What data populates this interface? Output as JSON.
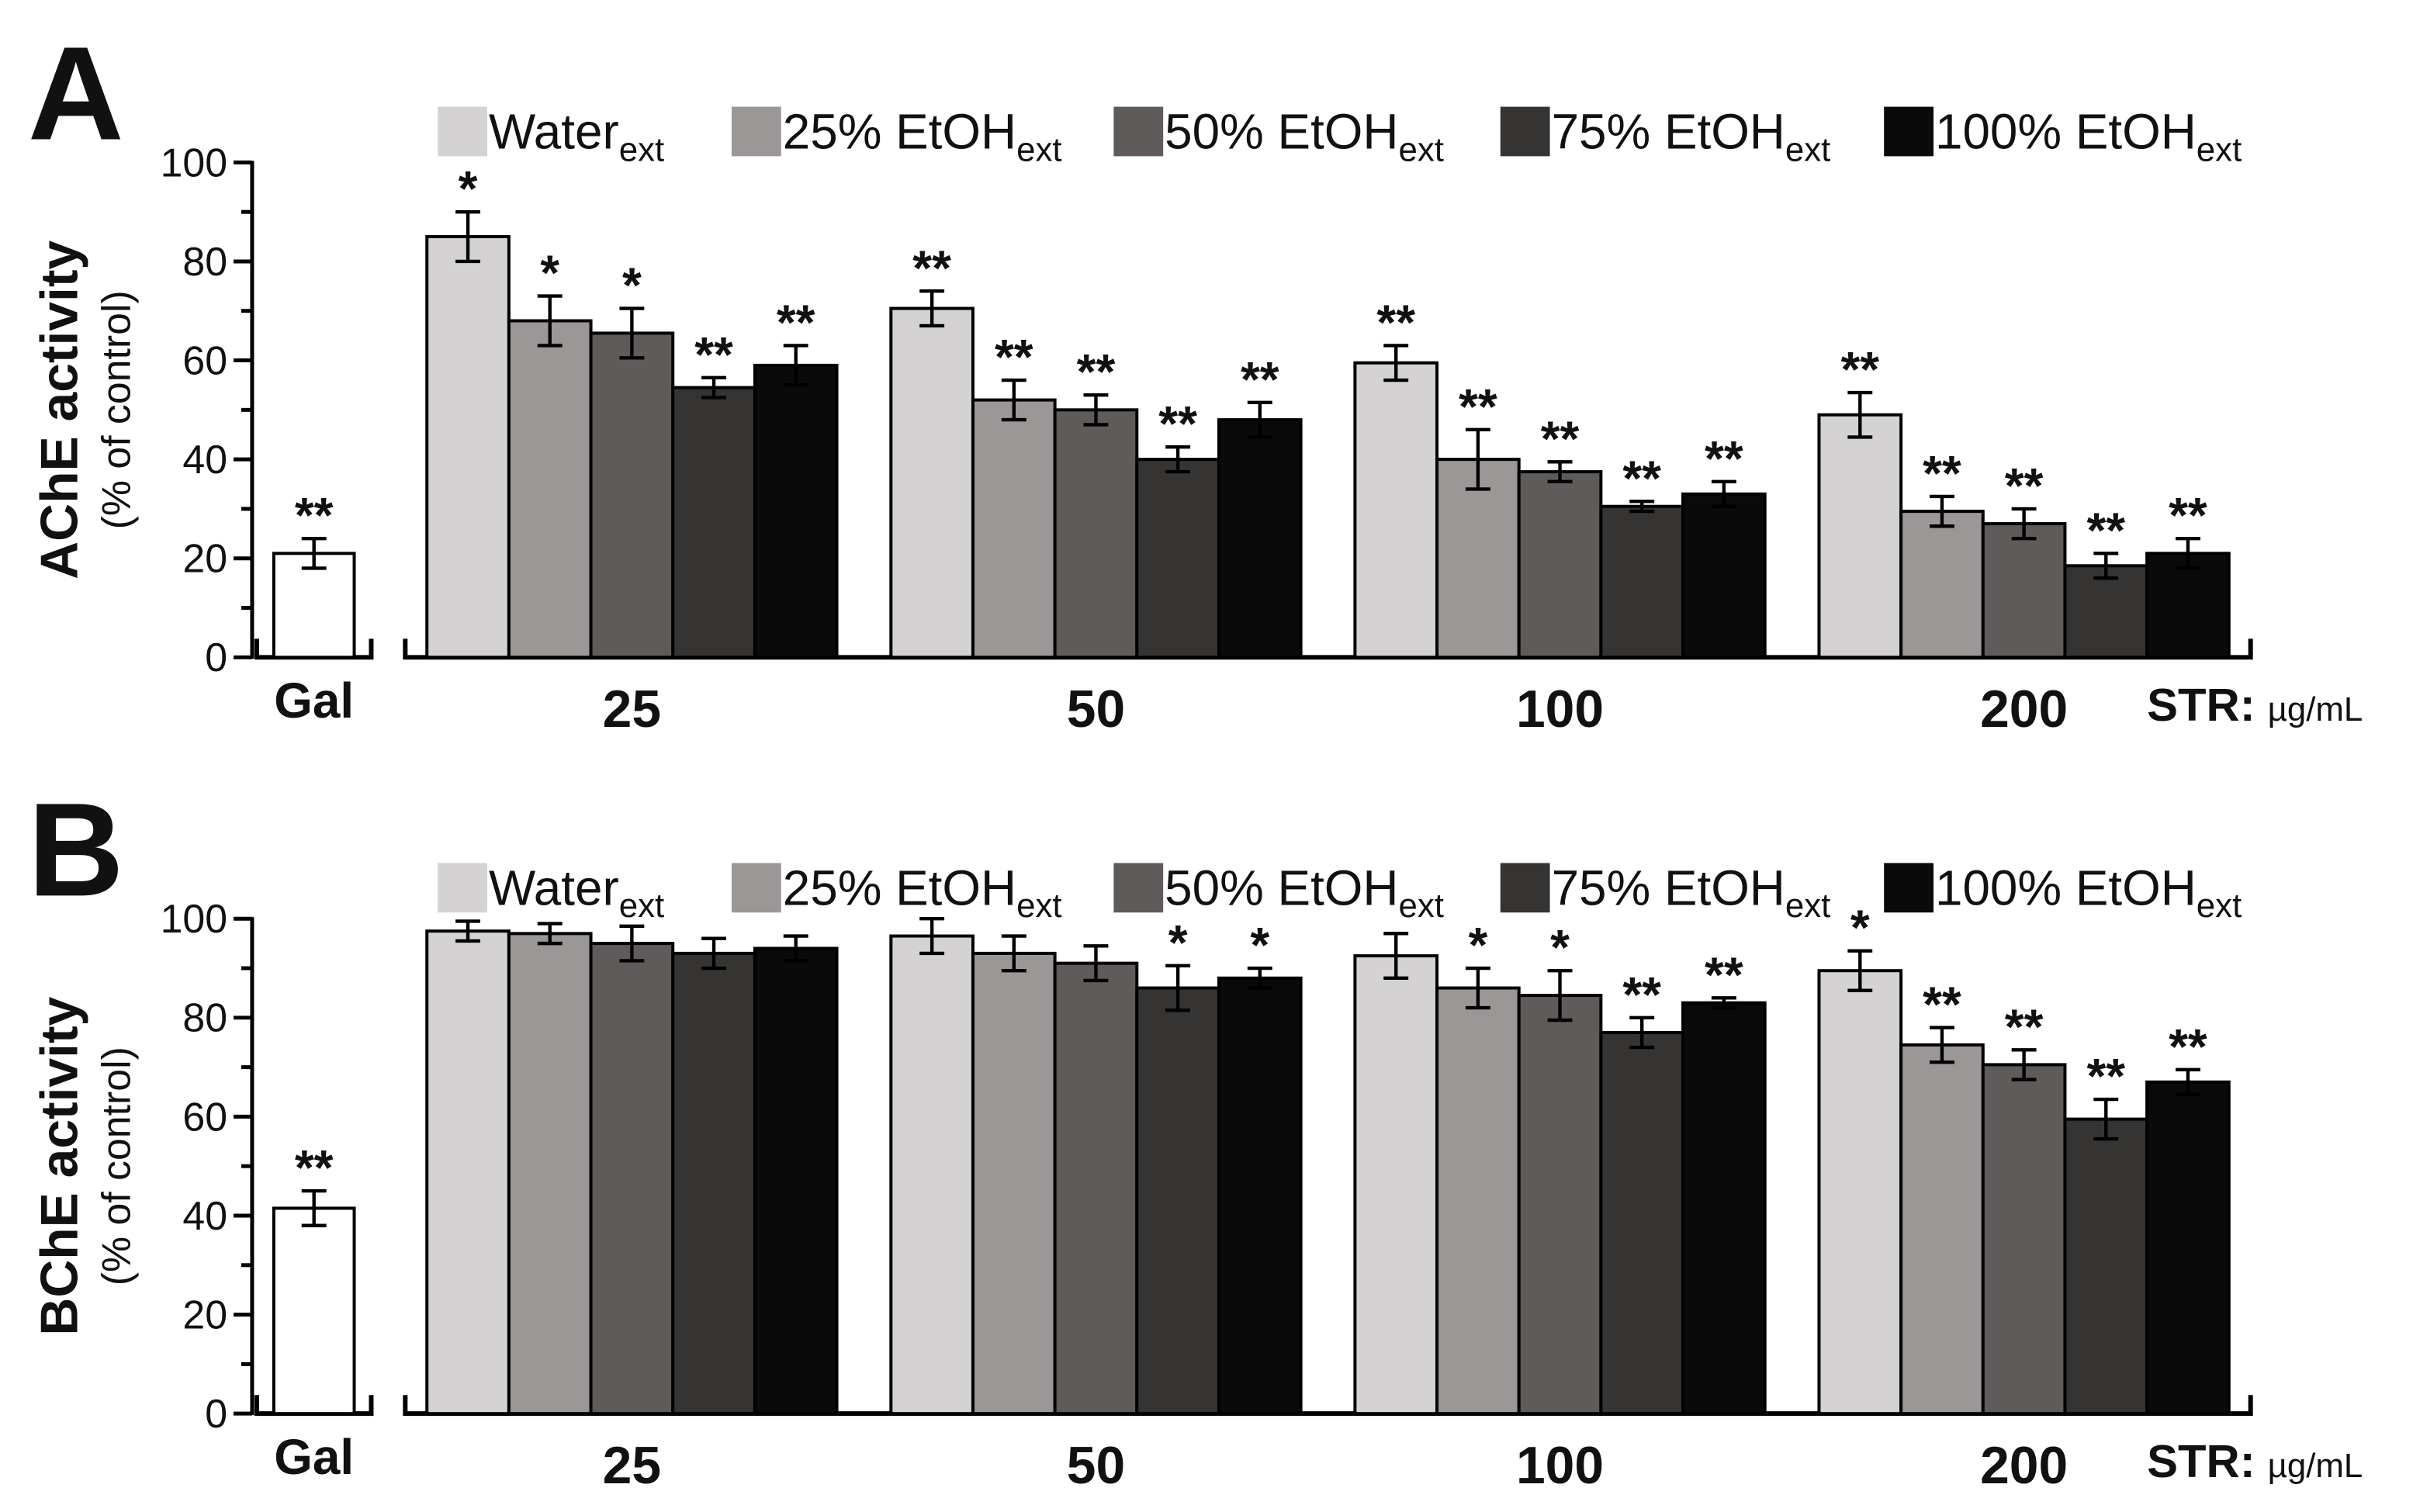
{
  "chart_data": [
    {
      "type": "bar",
      "panel": "A",
      "ylabel": "AChE activity",
      "ylabel_sub": "(% of control)",
      "ylim": [
        0,
        100
      ],
      "yticks": [
        0,
        20,
        40,
        60,
        80,
        100
      ],
      "yminorticks": [
        10,
        30,
        50,
        70,
        90
      ],
      "control": {
        "label": "Gal",
        "value": 21,
        "error": 3,
        "significance": "**",
        "color": "#ffffff"
      },
      "categories": [
        "25",
        "50",
        "100",
        "200"
      ],
      "xlabel": "STR:",
      "xunit": "µg/mL",
      "series": [
        {
          "name": "Water",
          "name_sub": "ext",
          "color": "#d4d2d2",
          "values": [
            85,
            70.5,
            59.5,
            49
          ],
          "errors": [
            5,
            3.5,
            3.5,
            4.5
          ],
          "significance": [
            "*",
            "**",
            "**",
            "**"
          ]
        },
        {
          "name": "25% EtOH",
          "name_sub": "ext",
          "color": "#9a9796",
          "values": [
            68,
            52,
            40,
            29.5
          ],
          "errors": [
            5,
            4,
            6,
            3
          ],
          "significance": [
            "*",
            "**",
            "**",
            "**"
          ]
        },
        {
          "name": "50% EtOH",
          "name_sub": "ext",
          "color": "#5f5b5a",
          "values": [
            65.5,
            50,
            37.5,
            27
          ],
          "errors": [
            5,
            3,
            2,
            3
          ],
          "significance": [
            "*",
            "**",
            "**",
            "**"
          ]
        },
        {
          "name": "75% EtOH",
          "name_sub": "ext",
          "color": "#363433",
          "values": [
            54.5,
            40,
            30.5,
            18.5
          ],
          "errors": [
            2,
            2.5,
            1,
            2.5
          ],
          "significance": [
            "**",
            "**",
            "**",
            "**"
          ]
        },
        {
          "name": "100% EtOH",
          "name_sub": "ext",
          "color": "#0a0a0a",
          "values": [
            59,
            48,
            33,
            21
          ],
          "errors": [
            4,
            3.5,
            2.5,
            3
          ],
          "significance": [
            "**",
            "**",
            "**",
            "**"
          ]
        }
      ]
    },
    {
      "type": "bar",
      "panel": "B",
      "ylabel": "BChE activity",
      "ylabel_sub": "(% of control)",
      "ylim": [
        0,
        100
      ],
      "yticks": [
        0,
        20,
        40,
        60,
        80,
        100
      ],
      "yminorticks": [
        10,
        30,
        50,
        70,
        90
      ],
      "control": {
        "label": "Gal",
        "value": 41.5,
        "error": 3.5,
        "significance": "**",
        "color": "#ffffff"
      },
      "categories": [
        "25",
        "50",
        "100",
        "200"
      ],
      "xlabel": "STR:",
      "xunit": "µg/mL",
      "series": [
        {
          "name": "Water",
          "name_sub": "ext",
          "color": "#d4d2d2",
          "values": [
            97.5,
            96.5,
            92.5,
            89.5
          ],
          "errors": [
            2,
            3.5,
            4.5,
            4
          ],
          "significance": [
            null,
            null,
            null,
            "*"
          ]
        },
        {
          "name": "25% EtOH",
          "name_sub": "ext",
          "color": "#9a9796",
          "values": [
            97,
            93,
            86,
            74.5
          ],
          "errors": [
            2,
            3.5,
            4,
            3.5
          ],
          "significance": [
            null,
            null,
            "*",
            "**"
          ]
        },
        {
          "name": "50% EtOH",
          "name_sub": "ext",
          "color": "#5f5b5a",
          "values": [
            95,
            91,
            84.5,
            70.5
          ],
          "errors": [
            3.5,
            3.5,
            5,
            3
          ],
          "significance": [
            null,
            null,
            "*",
            "**"
          ]
        },
        {
          "name": "75% EtOH",
          "name_sub": "ext",
          "color": "#363433",
          "values": [
            93,
            86,
            77,
            59.5
          ],
          "errors": [
            3,
            4.5,
            3,
            4
          ],
          "significance": [
            null,
            "*",
            "**",
            "**"
          ]
        },
        {
          "name": "100% EtOH",
          "name_sub": "ext",
          "color": "#0a0a0a",
          "values": [
            94,
            88,
            83,
            67
          ],
          "errors": [
            2.5,
            2,
            1,
            2.5
          ],
          "significance": [
            null,
            "*",
            "**",
            "**"
          ]
        }
      ]
    }
  ]
}
